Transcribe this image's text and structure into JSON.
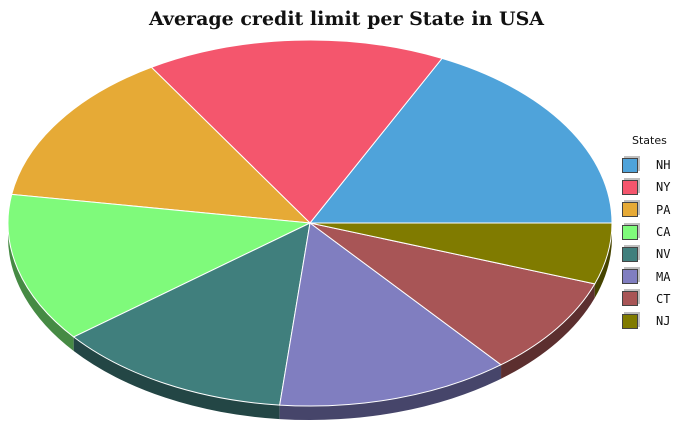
{
  "chart_data": {
    "type": "pie",
    "title": "Average credit limit per State in USA",
    "legend_title": "States",
    "legend_position": "right",
    "categories": [
      "NH",
      "NY",
      "PA",
      "CA",
      "NV",
      "MA",
      "CT",
      "NJ"
    ],
    "values": [
      17.8,
      16.0,
      13.7,
      13.2,
      12.7,
      12.5,
      8.7,
      5.4
    ],
    "colors": [
      "#4fa3da",
      "#f4566d",
      "#e6aa36",
      "#7ffa7b",
      "#407f7d",
      "#807ec0",
      "#a85556",
      "#807b00"
    ]
  }
}
